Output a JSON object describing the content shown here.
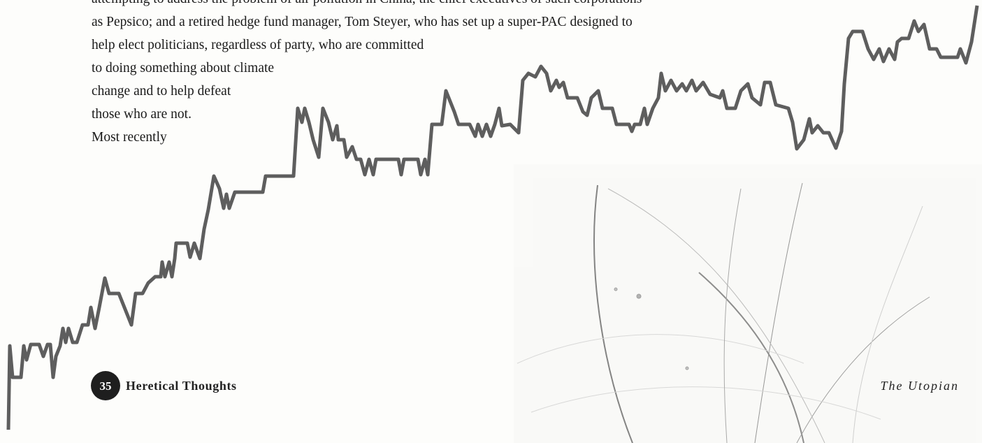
{
  "body_lines": [
    "attempting to address the problem of air pollution in China, the chief executives of such corporations",
    "as Pepsico; and a retired hedge fund manager, Tom Steyer, who has set up a super-PAC designed to",
    "help elect politicians, regardless of party, who are committed",
    "to doing something about climate",
    "change and to help defeat",
    "those who are not.",
    "Most recently"
  ],
  "footer": {
    "page_number": "35",
    "section": "Heretical Thoughts",
    "publication": "The Utopian"
  }
}
